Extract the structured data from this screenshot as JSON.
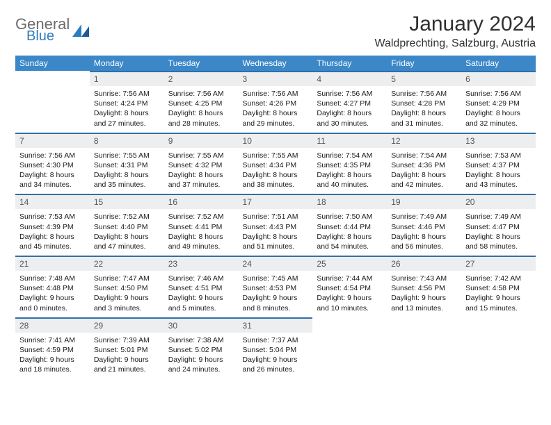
{
  "brand": {
    "line1": "General",
    "line2": "Blue"
  },
  "title": "January 2024",
  "location": "Waldprechting, Salzburg, Austria",
  "columns": [
    "Sunday",
    "Monday",
    "Tuesday",
    "Wednesday",
    "Thursday",
    "Friday",
    "Saturday"
  ],
  "colors": {
    "header_bg": "#3b87c8",
    "header_fg": "#ffffff",
    "daynum_bg": "#eceeef",
    "daynum_border": "#2f6fa8",
    "brand_gray": "#6b6b6b",
    "brand_blue": "#2f7bbf"
  },
  "weeks": [
    [
      null,
      {
        "n": "1",
        "sr": "7:56 AM",
        "ss": "4:24 PM",
        "dl": "8 hours and 27 minutes."
      },
      {
        "n": "2",
        "sr": "7:56 AM",
        "ss": "4:25 PM",
        "dl": "8 hours and 28 minutes."
      },
      {
        "n": "3",
        "sr": "7:56 AM",
        "ss": "4:26 PM",
        "dl": "8 hours and 29 minutes."
      },
      {
        "n": "4",
        "sr": "7:56 AM",
        "ss": "4:27 PM",
        "dl": "8 hours and 30 minutes."
      },
      {
        "n": "5",
        "sr": "7:56 AM",
        "ss": "4:28 PM",
        "dl": "8 hours and 31 minutes."
      },
      {
        "n": "6",
        "sr": "7:56 AM",
        "ss": "4:29 PM",
        "dl": "8 hours and 32 minutes."
      }
    ],
    [
      {
        "n": "7",
        "sr": "7:56 AM",
        "ss": "4:30 PM",
        "dl": "8 hours and 34 minutes."
      },
      {
        "n": "8",
        "sr": "7:55 AM",
        "ss": "4:31 PM",
        "dl": "8 hours and 35 minutes."
      },
      {
        "n": "9",
        "sr": "7:55 AM",
        "ss": "4:32 PM",
        "dl": "8 hours and 37 minutes."
      },
      {
        "n": "10",
        "sr": "7:55 AM",
        "ss": "4:34 PM",
        "dl": "8 hours and 38 minutes."
      },
      {
        "n": "11",
        "sr": "7:54 AM",
        "ss": "4:35 PM",
        "dl": "8 hours and 40 minutes."
      },
      {
        "n": "12",
        "sr": "7:54 AM",
        "ss": "4:36 PM",
        "dl": "8 hours and 42 minutes."
      },
      {
        "n": "13",
        "sr": "7:53 AM",
        "ss": "4:37 PM",
        "dl": "8 hours and 43 minutes."
      }
    ],
    [
      {
        "n": "14",
        "sr": "7:53 AM",
        "ss": "4:39 PM",
        "dl": "8 hours and 45 minutes."
      },
      {
        "n": "15",
        "sr": "7:52 AM",
        "ss": "4:40 PM",
        "dl": "8 hours and 47 minutes."
      },
      {
        "n": "16",
        "sr": "7:52 AM",
        "ss": "4:41 PM",
        "dl": "8 hours and 49 minutes."
      },
      {
        "n": "17",
        "sr": "7:51 AM",
        "ss": "4:43 PM",
        "dl": "8 hours and 51 minutes."
      },
      {
        "n": "18",
        "sr": "7:50 AM",
        "ss": "4:44 PM",
        "dl": "8 hours and 54 minutes."
      },
      {
        "n": "19",
        "sr": "7:49 AM",
        "ss": "4:46 PM",
        "dl": "8 hours and 56 minutes."
      },
      {
        "n": "20",
        "sr": "7:49 AM",
        "ss": "4:47 PM",
        "dl": "8 hours and 58 minutes."
      }
    ],
    [
      {
        "n": "21",
        "sr": "7:48 AM",
        "ss": "4:48 PM",
        "dl": "9 hours and 0 minutes."
      },
      {
        "n": "22",
        "sr": "7:47 AM",
        "ss": "4:50 PM",
        "dl": "9 hours and 3 minutes."
      },
      {
        "n": "23",
        "sr": "7:46 AM",
        "ss": "4:51 PM",
        "dl": "9 hours and 5 minutes."
      },
      {
        "n": "24",
        "sr": "7:45 AM",
        "ss": "4:53 PM",
        "dl": "9 hours and 8 minutes."
      },
      {
        "n": "25",
        "sr": "7:44 AM",
        "ss": "4:54 PM",
        "dl": "9 hours and 10 minutes."
      },
      {
        "n": "26",
        "sr": "7:43 AM",
        "ss": "4:56 PM",
        "dl": "9 hours and 13 minutes."
      },
      {
        "n": "27",
        "sr": "7:42 AM",
        "ss": "4:58 PM",
        "dl": "9 hours and 15 minutes."
      }
    ],
    [
      {
        "n": "28",
        "sr": "7:41 AM",
        "ss": "4:59 PM",
        "dl": "9 hours and 18 minutes."
      },
      {
        "n": "29",
        "sr": "7:39 AM",
        "ss": "5:01 PM",
        "dl": "9 hours and 21 minutes."
      },
      {
        "n": "30",
        "sr": "7:38 AM",
        "ss": "5:02 PM",
        "dl": "9 hours and 24 minutes."
      },
      {
        "n": "31",
        "sr": "7:37 AM",
        "ss": "5:04 PM",
        "dl": "9 hours and 26 minutes."
      },
      null,
      null,
      null
    ]
  ],
  "labels": {
    "sunrise": "Sunrise:",
    "sunset": "Sunset:",
    "daylight": "Daylight:"
  }
}
